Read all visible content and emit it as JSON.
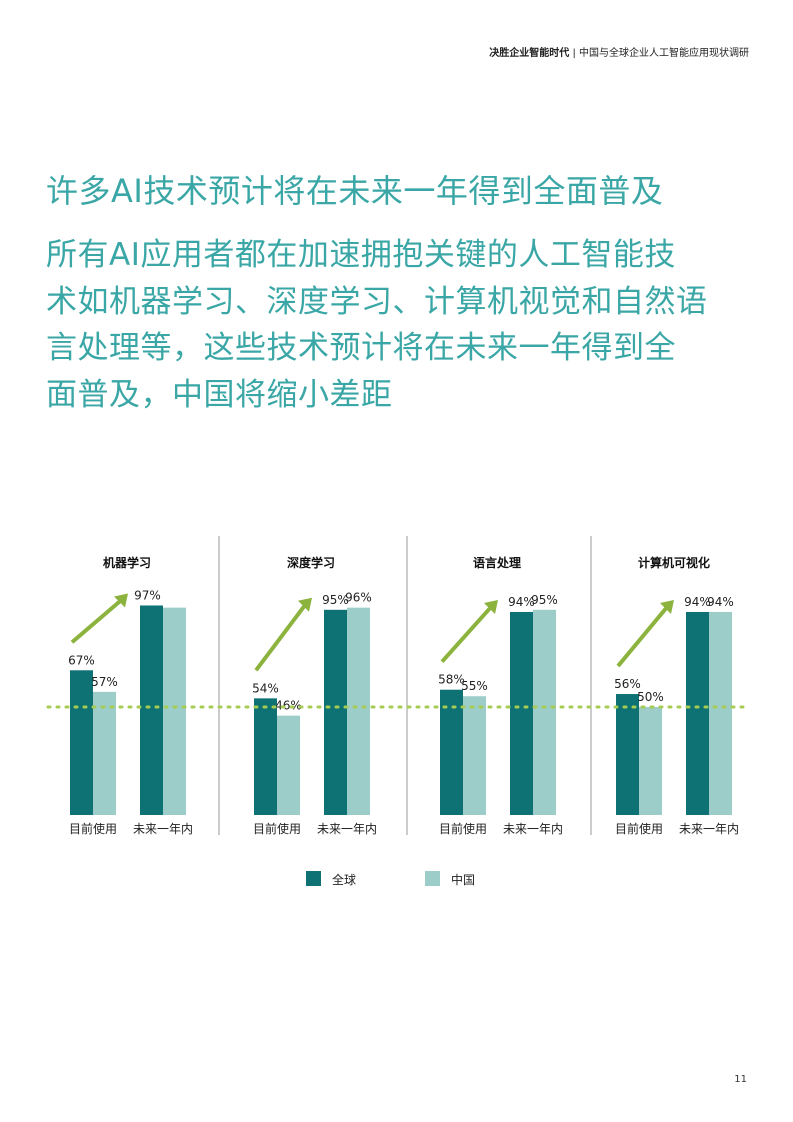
{
  "header": {
    "bold": "决胜企业智能时代",
    "separator": "|",
    "rest": "中国与全球企业人工智能应用现状调研"
  },
  "title": "许多AI技术预计将在未来一年得到全面普及",
  "subtitle_lines": [
    "所有AI应用者都在加速拥抱关键的人工智能技",
    "术如机器学习、深度学习、计算机视觉和自然语",
    "言处理等，这些技术预计将在未来一年得到全",
    "面普及，中国将缩小差距"
  ],
  "page_number": "11",
  "chart_data": {
    "type": "bar",
    "ylim": [
      0,
      100
    ],
    "unit": "%",
    "reference_line": 50,
    "colors": {
      "全球": "#0e7275",
      "中国": "#9ccdc9",
      "arrow": "#8cb33e",
      "reference": "#a6cc52"
    },
    "legend": {
      "placement": "bottom",
      "entries": [
        "全球",
        "中国"
      ]
    },
    "categories": [
      "目前使用",
      "未来一年内"
    ],
    "panels": [
      {
        "title": "机器学习",
        "series": [
          {
            "name": "全球",
            "values": [
              67,
              97
            ],
            "labels": [
              "67%",
              "97%"
            ]
          },
          {
            "name": "中国",
            "values": [
              57,
              96
            ],
            "labels": [
              "57%",
              ""
            ]
          }
        ]
      },
      {
        "title": "深度学习",
        "series": [
          {
            "name": "全球",
            "values": [
              54,
              95
            ],
            "labels": [
              "54%",
              "95%"
            ]
          },
          {
            "name": "中国",
            "values": [
              46,
              96
            ],
            "labels": [
              "46%",
              "96%"
            ]
          }
        ]
      },
      {
        "title": "语言处理",
        "series": [
          {
            "name": "全球",
            "values": [
              58,
              94
            ],
            "labels": [
              "58%",
              "94%"
            ]
          },
          {
            "name": "中国",
            "values": [
              55,
              95
            ],
            "labels": [
              "55%",
              "95%"
            ]
          }
        ]
      },
      {
        "title": "计算机可视化",
        "series": [
          {
            "name": "全球",
            "values": [
              56,
              94
            ],
            "labels": [
              "56%",
              "94%"
            ]
          },
          {
            "name": "中国",
            "values": [
              50,
              94
            ],
            "labels": [
              "50%",
              "94%"
            ]
          }
        ]
      }
    ]
  }
}
